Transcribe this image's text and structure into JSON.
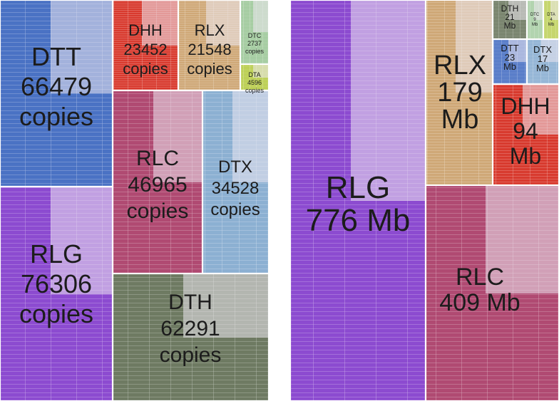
{
  "chart_data": [
    {
      "type": "treemap",
      "title": "",
      "unit": "copies",
      "items": [
        {
          "name": "RLG",
          "value": 76306,
          "value_label": "76306",
          "unit_label": "copies",
          "color": "#8c4bd0"
        },
        {
          "name": "DTT",
          "value": 66479,
          "value_label": "66479",
          "unit_label": "copies",
          "color": "#4a72c4"
        },
        {
          "name": "DTH",
          "value": 62291,
          "value_label": "62291",
          "unit_label": "copies",
          "color": "#6e7a62"
        },
        {
          "name": "RLC",
          "value": 46965,
          "value_label": "46965",
          "unit_label": "copies",
          "color": "#b04a72"
        },
        {
          "name": "DTX",
          "value": 34528,
          "value_label": "34528",
          "unit_label": "copies",
          "color": "#8cb0d2"
        },
        {
          "name": "DHH",
          "value": 23452,
          "value_label": "23452",
          "unit_label": "copies",
          "color": "#d83a2e"
        },
        {
          "name": "RLX",
          "value": 21548,
          "value_label": "21548",
          "unit_label": "copies",
          "color": "#cfa877"
        },
        {
          "name": "DTA",
          "value": 4596,
          "value_label": "4596",
          "unit_label": "copies",
          "color": "#b7cc48"
        },
        {
          "name": "DTC",
          "value": 2737,
          "value_label": "2737",
          "unit_label": "copies",
          "color": "#9ec89a"
        }
      ]
    },
    {
      "type": "treemap",
      "title": "",
      "unit": "Mb",
      "items": [
        {
          "name": "RLG",
          "value": 776,
          "value_label": "776",
          "unit_label": "Mb",
          "color": "#8c4bd0"
        },
        {
          "name": "RLC",
          "value": 409,
          "value_label": "409",
          "unit_label": "Mb",
          "color": "#b04a72"
        },
        {
          "name": "RLX",
          "value": 179,
          "value_label": "179",
          "unit_label": "Mb",
          "color": "#cfa877"
        },
        {
          "name": "DHH",
          "value": 94,
          "value_label": "94",
          "unit_label": "Mb",
          "color": "#d83a2e"
        },
        {
          "name": "DTT",
          "value": 23,
          "value_label": "23",
          "unit_label": "Mb",
          "color": "#4a72c4"
        },
        {
          "name": "DTH",
          "value": 21,
          "value_label": "21",
          "unit_label": "Mb",
          "color": "#6e7a62"
        },
        {
          "name": "DTX",
          "value": 17,
          "value_label": "17",
          "unit_label": "Mb",
          "color": "#8cb0d2"
        },
        {
          "name": "DTC",
          "value": 9,
          "value_label": "9",
          "unit_label": "Mb",
          "color": "#9ec89a"
        },
        {
          "name": "DTA",
          "value": 4,
          "value_label": "4",
          "unit_label": "Mb",
          "color": "#b7cc48"
        }
      ]
    }
  ]
}
